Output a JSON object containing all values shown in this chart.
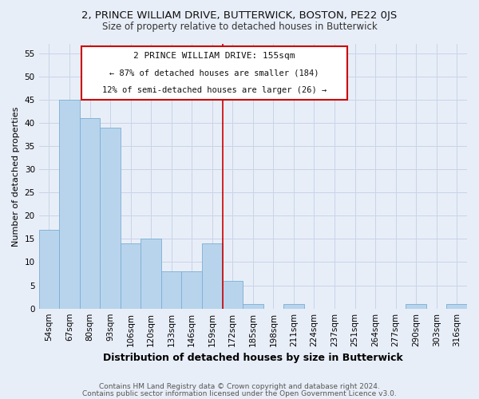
{
  "title": "2, PRINCE WILLIAM DRIVE, BUTTERWICK, BOSTON, PE22 0JS",
  "subtitle": "Size of property relative to detached houses in Butterwick",
  "xlabel": "Distribution of detached houses by size in Butterwick",
  "ylabel": "Number of detached properties",
  "bar_labels": [
    "54sqm",
    "67sqm",
    "80sqm",
    "93sqm",
    "106sqm",
    "120sqm",
    "133sqm",
    "146sqm",
    "159sqm",
    "172sqm",
    "185sqm",
    "198sqm",
    "211sqm",
    "224sqm",
    "237sqm",
    "251sqm",
    "264sqm",
    "277sqm",
    "290sqm",
    "303sqm",
    "316sqm"
  ],
  "bar_values": [
    17,
    45,
    41,
    39,
    14,
    15,
    8,
    8,
    14,
    6,
    1,
    0,
    1,
    0,
    0,
    0,
    0,
    0,
    1,
    0,
    1
  ],
  "bar_color": "#b8d4ec",
  "bar_edge_color": "#7aaed4",
  "vline_x": 8.5,
  "vline_color": "#cc0000",
  "ylim": [
    0,
    57
  ],
  "yticks": [
    0,
    5,
    10,
    15,
    20,
    25,
    30,
    35,
    40,
    45,
    50,
    55
  ],
  "annotation_title": "2 PRINCE WILLIAM DRIVE: 155sqm",
  "annotation_line1": "← 87% of detached houses are smaller (184)",
  "annotation_line2": "12% of semi-detached houses are larger (26) →",
  "annotation_box_color": "#ffffff",
  "annotation_box_edge": "#cc0000",
  "footer1": "Contains HM Land Registry data © Crown copyright and database right 2024.",
  "footer2": "Contains public sector information licensed under the Open Government Licence v3.0.",
  "title_fontsize": 9.5,
  "subtitle_fontsize": 8.5,
  "xlabel_fontsize": 9,
  "ylabel_fontsize": 8,
  "tick_fontsize": 7.5,
  "annotation_title_fontsize": 8,
  "annotation_text_fontsize": 7.5,
  "footer_fontsize": 6.5,
  "bg_color": "#e8eef8"
}
